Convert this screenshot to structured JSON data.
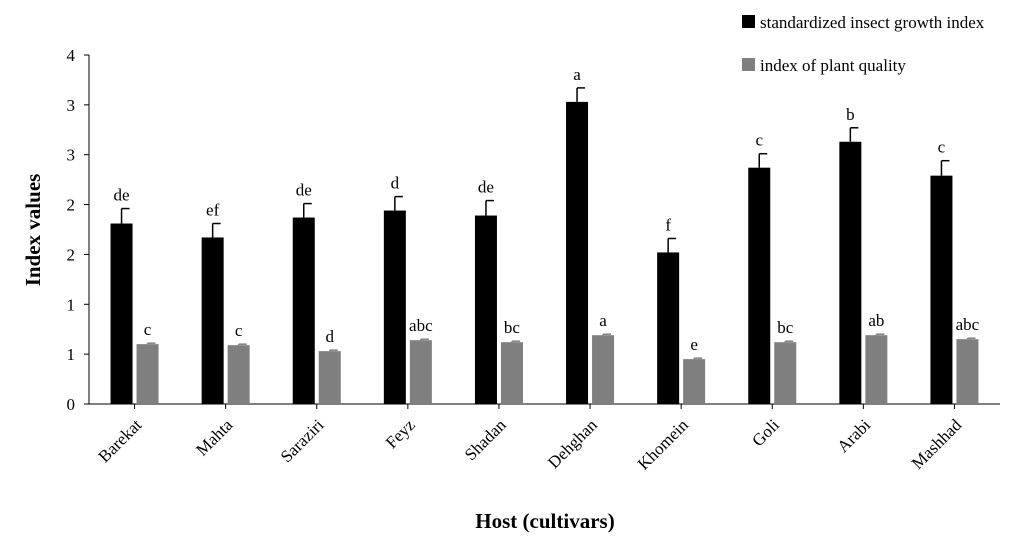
{
  "chart_data": {
    "type": "bar",
    "xlabel": "Host (cultivars)",
    "ylabel": "Index values",
    "y_tick_labels": [
      "0",
      "1",
      "1",
      "2",
      "2",
      "3",
      "3",
      "4"
    ],
    "ylim": [
      0,
      3.5
    ],
    "categories": [
      "Barekat",
      "Mahta",
      "Saraziri",
      "Feyz",
      "Shadan",
      "Dehghan",
      "Khomein",
      "Goli",
      "Arabi",
      "Mashhad"
    ],
    "series": [
      {
        "name": "standardized insect growth index",
        "color": "#000000",
        "values": [
          1.81,
          1.67,
          1.87,
          1.94,
          1.89,
          3.03,
          1.52,
          2.37,
          2.63,
          2.29
        ],
        "errors": [
          0.15,
          0.14,
          0.14,
          0.14,
          0.15,
          0.14,
          0.14,
          0.14,
          0.14,
          0.15
        ],
        "letters": [
          "de",
          "ef",
          "de",
          "d",
          "de",
          "a",
          "f",
          "c",
          "b",
          "c"
        ]
      },
      {
        "name": "index of plant quality",
        "color": "#7f7f7f",
        "values": [
          0.6,
          0.59,
          0.53,
          0.64,
          0.62,
          0.69,
          0.45,
          0.62,
          0.69,
          0.65
        ],
        "errors": [
          0.01,
          0.01,
          0.01,
          0.01,
          0.01,
          0.01,
          0.01,
          0.01,
          0.01,
          0.01
        ],
        "letters": [
          "c",
          "c",
          "d",
          "abc",
          "bc",
          "a",
          "e",
          "bc",
          "ab",
          "abc"
        ]
      }
    ],
    "legend_position": "top-right",
    "grid": false
  }
}
